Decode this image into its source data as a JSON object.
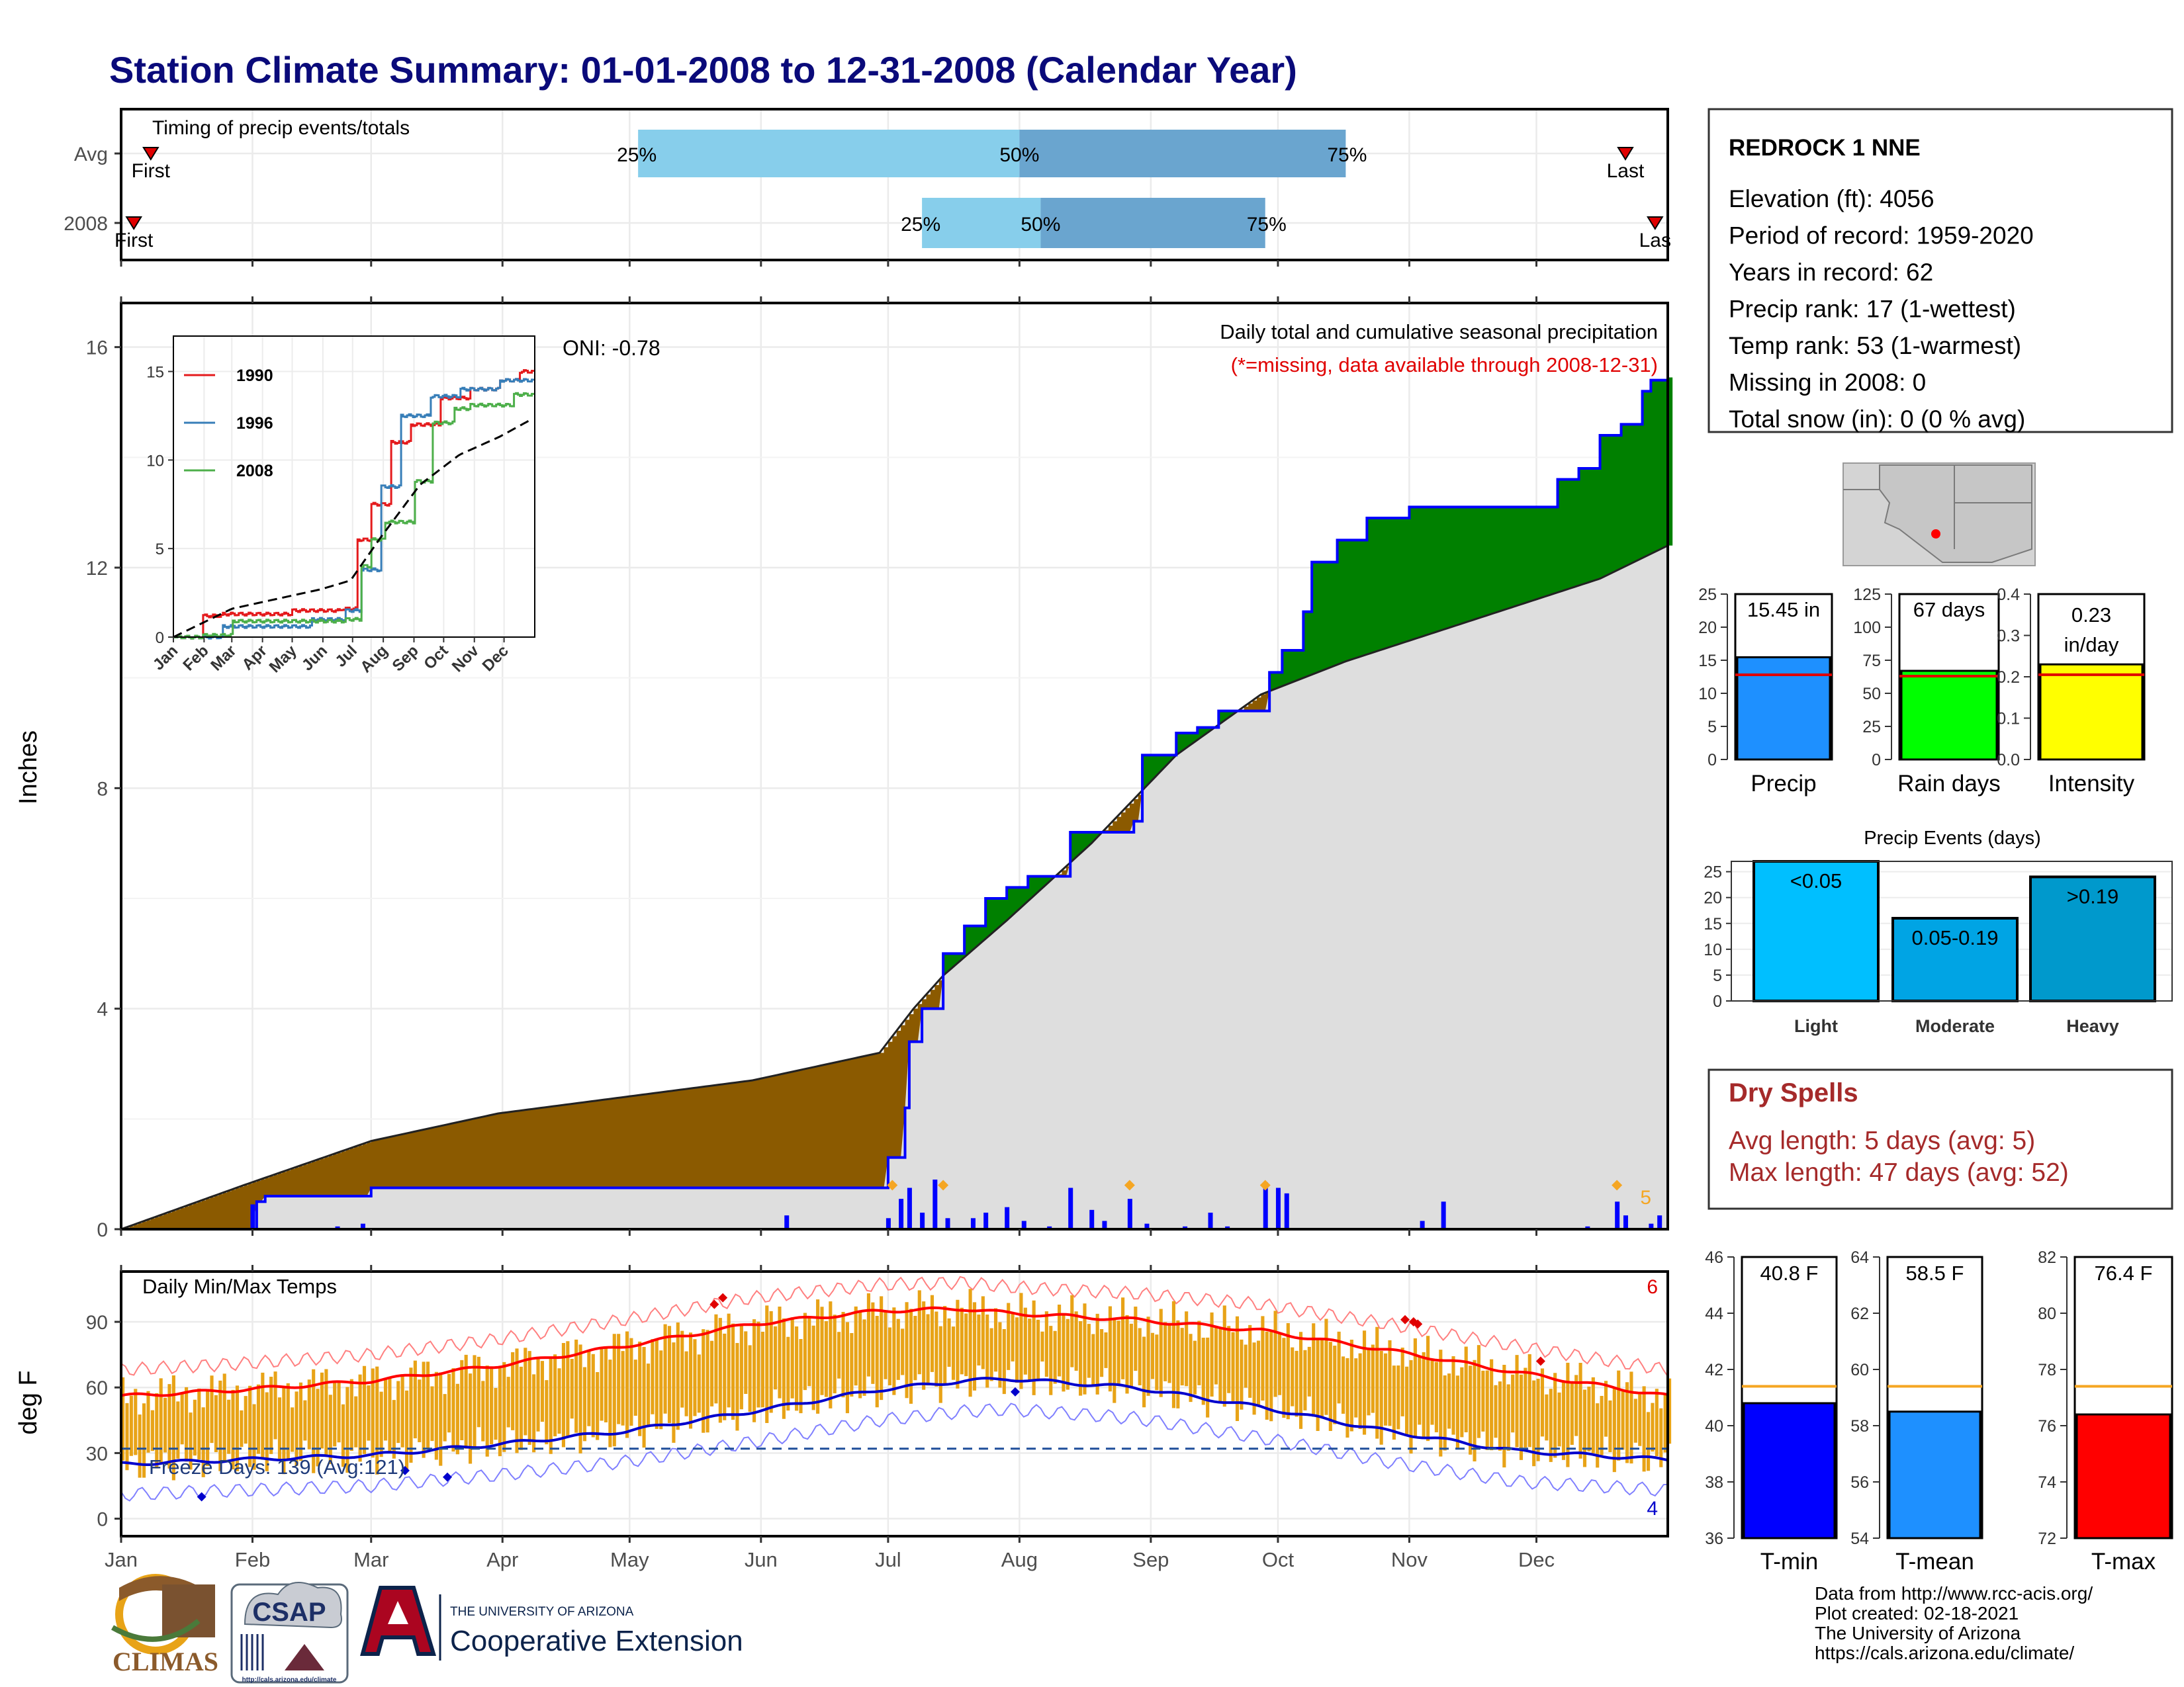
{
  "title": "Station Climate Summary: 01-01-2008 to 12-31-2008 (Calendar Year)",
  "colors": {
    "title": "#0a0a7a",
    "avgPrecipFill": "#8B5A00",
    "abovePrecipFill": "#008000",
    "cumFill": "#DEDEDE",
    "cumLine": "#0000FF",
    "tmaxLine": "#FF0000",
    "tminLine": "#0000CC",
    "tempBars": "#E8A317",
    "q1": "#87CEEB",
    "q2": "#6AA5CF",
    "dryspell": "#A52A2A"
  },
  "months": [
    "Jan",
    "Feb",
    "Mar",
    "Apr",
    "May",
    "Jun",
    "Jul",
    "Aug",
    "Sep",
    "Oct",
    "Nov",
    "Dec"
  ],
  "timing": {
    "title": "Timing of precip events/totals",
    "rows": [
      {
        "label": "Avg",
        "first_label": "First",
        "last_label": "Last",
        "first_day": 8,
        "last_day": 356,
        "q25_day": 123,
        "q50_day": 213,
        "q75_day": 290,
        "q25": "25%",
        "q50": "50%",
        "q75": "75%"
      },
      {
        "label": "2008",
        "first_label": "First",
        "last_label": "Las",
        "first_day": 4,
        "last_day": 363,
        "q25_day": 190,
        "q50_day": 218,
        "q75_day": 271,
        "q25": "25%",
        "q50": "50%",
        "q75": "75%"
      }
    ]
  },
  "precip_panel": {
    "ylabel": "Inches",
    "yticks": [
      0,
      4,
      8,
      12,
      16
    ],
    "ylim": [
      0,
      16.8
    ],
    "oni": "ONI: -0.78",
    "caption": "Daily total and cumulative seasonal precipitation",
    "missing_note": "(*=missing, data available through 2008-12-31)",
    "extreme_count": "5"
  },
  "inset": {
    "xticks": [
      "Jan",
      "Feb",
      "Mar",
      "Apr",
      "May",
      "Jun",
      "Jul",
      "Aug",
      "Sep",
      "Oct",
      "Nov",
      "Dec"
    ],
    "yticks": [
      0,
      5,
      10,
      15
    ],
    "legend": [
      {
        "name": "1990",
        "color": "#E41A1C"
      },
      {
        "name": "1996",
        "color": "#377EB8"
      },
      {
        "name": "2008",
        "color": "#4DAF4A"
      }
    ]
  },
  "temp_panel": {
    "ylabel": "deg F",
    "title": "Daily Min/Max Temps",
    "yticks": [
      0,
      30,
      60,
      90
    ],
    "freeze": "Freeze Days: 139 (Avg:121)",
    "hot_count": "6",
    "cold_count": "4"
  },
  "station": {
    "name": "REDROCK 1 NNE",
    "lines": [
      "Elevation (ft): 4056",
      "Period of record: 1959-2020",
      "Years in record: 62",
      "Precip rank: 17 (1-wettest)",
      "Temp rank: 53 (1-warmest)",
      "Missing in 2008: 0",
      "Total snow (in): 0 (0 % avg)"
    ]
  },
  "summary_bars": [
    {
      "name": "Precip",
      "value": 15.45,
      "avg": 12.8,
      "label": "15.45 in",
      "ylim": [
        0,
        25
      ],
      "ticks": [
        "0",
        "5",
        "10",
        "15",
        "20",
        "25"
      ],
      "color": "#1E90FF"
    },
    {
      "name": "Rain days",
      "value": 67,
      "avg": 63,
      "label": "67 days",
      "ylim": [
        0,
        125
      ],
      "ticks": [
        "0",
        "25",
        "50",
        "75",
        "100",
        "125"
      ],
      "color": "#00FF00"
    },
    {
      "name": "Intensity",
      "value": 0.23,
      "avg": 0.205,
      "label": "0.23",
      "label2": "in/day",
      "ylim": [
        0,
        0.4
      ],
      "ticks": [
        "0.0",
        "0.1",
        "0.2",
        "0.3",
        "0.4"
      ],
      "color": "#FFFF00"
    }
  ],
  "events": {
    "title": "Precip Events (days)",
    "yticks": [
      0,
      5,
      10,
      15,
      20,
      25
    ],
    "ylim": [
      0,
      27
    ],
    "bars": [
      {
        "name": "Light",
        "label": "<0.05",
        "value": 27,
        "color": "#00BFFF"
      },
      {
        "name": "Moderate",
        "label": "0.05-0.19",
        "value": 16,
        "color": "#00A4E4"
      },
      {
        "name": "Heavy",
        "label": ">0.19",
        "value": 24,
        "color": "#0099CC"
      }
    ]
  },
  "dry_spells": {
    "title": "Dry Spells",
    "avg_len": "Avg length: 5 days (avg: 5)",
    "max_len": "Max length: 47 days (avg: 52)"
  },
  "temp_bars": [
    {
      "name": "T-min",
      "value": 40.8,
      "avg": 41.4,
      "label": "40.8 F",
      "ylim": [
        36,
        46
      ],
      "ticks": [
        "36",
        "38",
        "40",
        "42",
        "44",
        "46"
      ],
      "color": "#0000FF"
    },
    {
      "name": "T-mean",
      "value": 58.5,
      "avg": 59.4,
      "label": "58.5 F",
      "ylim": [
        54,
        64
      ],
      "ticks": [
        "54",
        "56",
        "58",
        "60",
        "62",
        "64"
      ],
      "color": "#1E90FF"
    },
    {
      "name": "T-max",
      "value": 76.4,
      "avg": 77.4,
      "label": "76.4 F",
      "ylim": [
        72,
        82
      ],
      "ticks": [
        "72",
        "74",
        "76",
        "78",
        "80",
        "82"
      ],
      "color": "#FF0000"
    }
  ],
  "credits": [
    "Data from http://www.rcc-acis.org/",
    "Plot created: 02-18-2021",
    "The University of Arizona",
    "https://cals.arizona.edu/climate/"
  ],
  "logos": {
    "climas": "CLIMAS",
    "csap": "CSAP",
    "csap_url": "http://cals.arizona.edu/climate",
    "ua_small": "THE UNIVERSITY OF ARIZONA",
    "ua_big": "Cooperative Extension"
  },
  "chart_data": {
    "type": "area",
    "title": "Daily total and cumulative seasonal precipitation",
    "ylabel": "Inches",
    "ylim": [
      0,
      16.8
    ],
    "series": [
      {
        "name": "Cumulative 2008",
        "x": [
          1,
          30,
          33,
          35,
          50,
          60,
          175,
          182,
          186,
          187,
          190,
          195,
          200,
          205,
          210,
          215,
          222,
          225,
          240,
          242,
          245,
          250,
          255,
          260,
          272,
          275,
          280,
          282,
          288,
          290,
          295,
          300,
          305,
          320,
          330,
          335,
          340,
          345,
          350,
          355,
          360,
          362,
          366
        ],
        "values": [
          0,
          0,
          0.5,
          0.6,
          0.6,
          0.75,
          0.75,
          1.3,
          2.2,
          3.4,
          4.0,
          5.0,
          5.5,
          6.0,
          6.2,
          6.4,
          6.4,
          7.2,
          7.4,
          8.6,
          8.6,
          9.0,
          9.1,
          9.4,
          10.1,
          10.5,
          11.2,
          12.1,
          12.5,
          12.5,
          12.9,
          12.9,
          13.1,
          13.1,
          13.1,
          13.1,
          13.6,
          13.8,
          14.4,
          14.6,
          15.2,
          15.4,
          15.45
        ]
      },
      {
        "name": "Average cumulative",
        "x": [
          1,
          30,
          60,
          90,
          120,
          150,
          180,
          188,
          195,
          210,
          230,
          250,
          270,
          290,
          310,
          330,
          350,
          366
        ],
        "values": [
          0,
          0.8,
          1.6,
          2.1,
          2.4,
          2.7,
          3.2,
          4.0,
          4.6,
          5.6,
          7.0,
          8.6,
          9.7,
          10.3,
          10.8,
          11.3,
          11.8,
          12.4
        ]
      }
    ],
    "daily_bars": [
      {
        "day": 32,
        "value": 0.45
      },
      {
        "day": 52,
        "value": 0.05
      },
      {
        "day": 58,
        "value": 0.1
      },
      {
        "day": 158,
        "value": 0.25
      },
      {
        "day": 182,
        "value": 0.2
      },
      {
        "day": 185,
        "value": 0.55
      },
      {
        "day": 187,
        "value": 0.75
      },
      {
        "day": 190,
        "value": 0.3
      },
      {
        "day": 193,
        "value": 0.9
      },
      {
        "day": 196,
        "value": 0.2
      },
      {
        "day": 202,
        "value": 0.2
      },
      {
        "day": 205,
        "value": 0.3
      },
      {
        "day": 210,
        "value": 0.4
      },
      {
        "day": 214,
        "value": 0.15
      },
      {
        "day": 220,
        "value": 0.05
      },
      {
        "day": 225,
        "value": 0.75
      },
      {
        "day": 230,
        "value": 0.35
      },
      {
        "day": 233,
        "value": 0.15
      },
      {
        "day": 239,
        "value": 0.55
      },
      {
        "day": 243,
        "value": 0.1
      },
      {
        "day": 252,
        "value": 0.05
      },
      {
        "day": 258,
        "value": 0.3
      },
      {
        "day": 262,
        "value": 0.05
      },
      {
        "day": 271,
        "value": 0.85
      },
      {
        "day": 274,
        "value": 0.75
      },
      {
        "day": 276,
        "value": 0.65
      },
      {
        "day": 308,
        "value": 0.15
      },
      {
        "day": 313,
        "value": 0.5
      },
      {
        "day": 347,
        "value": 0.05
      },
      {
        "day": 354,
        "value": 0.5
      },
      {
        "day": 356,
        "value": 0.25
      },
      {
        "day": 362,
        "value": 0.1
      },
      {
        "day": 364,
        "value": 0.25
      }
    ],
    "inset_series": [
      {
        "name": "1990",
        "x": [
          1,
          30,
          50,
          120,
          170,
          186,
          200,
          220,
          240,
          270,
          300,
          330,
          350,
          366
        ],
        "values": [
          0,
          1.2,
          1.3,
          1.5,
          1.6,
          5.5,
          7.5,
          11,
          12,
          13.5,
          14,
          14.5,
          15,
          16.7
        ]
      },
      {
        "name": "1996",
        "x": [
          1,
          50,
          140,
          175,
          190,
          210,
          230,
          260,
          290,
          330,
          366
        ],
        "values": [
          0,
          0.6,
          1.0,
          1.5,
          3.8,
          8.5,
          12.5,
          13.6,
          14.0,
          14.5,
          14.7
        ]
      },
      {
        "name": "2008",
        "x": [
          1,
          30,
          60,
          175,
          190,
          200,
          215,
          245,
          262,
          285,
          300,
          345,
          366
        ],
        "values": [
          0,
          0.1,
          0.9,
          1.0,
          4.0,
          5.5,
          6.5,
          8.8,
          12.1,
          12.9,
          13.1,
          13.7,
          15.45
        ]
      },
      {
        "name": "Average",
        "x": [
          1,
          60,
          150,
          180,
          210,
          250,
          290,
          330,
          366
        ],
        "values": [
          0,
          1.6,
          2.7,
          3.2,
          5.6,
          8.6,
          10.3,
          11.3,
          12.4
        ]
      }
    ],
    "temp": {
      "tmax_avg": {
        "x": [
          1,
          30,
          60,
          90,
          120,
          150,
          180,
          200,
          210,
          240,
          270,
          300,
          330,
          366
        ],
        "values": [
          56,
          59,
          63,
          70,
          79,
          89,
          95,
          96,
          94,
          91,
          86,
          77,
          67,
          56
        ]
      },
      "tmin_avg": {
        "x": [
          1,
          30,
          60,
          90,
          120,
          150,
          180,
          200,
          210,
          240,
          270,
          300,
          330,
          366
        ],
        "values": [
          25,
          27,
          29,
          34,
          40,
          49,
          59,
          63,
          64,
          60,
          51,
          40,
          31,
          27
        ]
      }
    }
  }
}
